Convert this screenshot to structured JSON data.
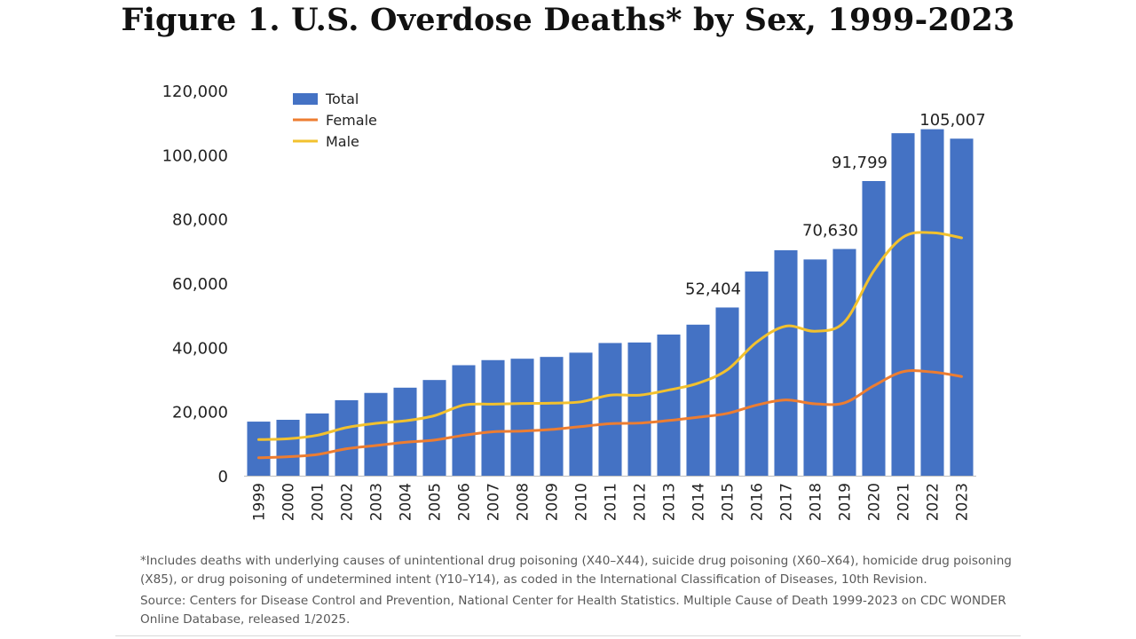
{
  "chart_data": {
    "type": "bar",
    "title": "Figure 1. U.S. Overdose Deaths* by Sex, 1999-2023",
    "xlabel": "",
    "ylabel": "",
    "ylim": [
      0,
      120000
    ],
    "yticks": [
      0,
      20000,
      40000,
      60000,
      80000,
      100000,
      120000
    ],
    "ytick_labels": [
      "0",
      "20,000",
      "40,000",
      "60,000",
      "80,000",
      "100,000",
      "120,000"
    ],
    "grid": false,
    "legend_position": "top-left",
    "categories": [
      "1999",
      "2000",
      "2001",
      "2002",
      "2003",
      "2004",
      "2005",
      "2006",
      "2007",
      "2008",
      "2009",
      "2010",
      "2011",
      "2012",
      "2013",
      "2014",
      "2015",
      "2016",
      "2017",
      "2018",
      "2019",
      "2020",
      "2021",
      "2022",
      "2023"
    ],
    "series": [
      {
        "name": "Total",
        "type": "bar",
        "color": "#4472c4",
        "values": [
          16849,
          17415,
          19394,
          23518,
          25785,
          27424,
          29813,
          34425,
          36010,
          36450,
          37004,
          38329,
          41340,
          41502,
          43982,
          47055,
          52404,
          63632,
          70237,
          67367,
          70630,
          91799,
          106699,
          107941,
          105007
        ]
      },
      {
        "name": "Female",
        "type": "line",
        "color": "#ed7d31",
        "values": [
          5591,
          5900,
          6600,
          8400,
          9400,
          10400,
          11100,
          12600,
          13700,
          13900,
          14400,
          15300,
          16200,
          16400,
          17200,
          18200,
          19400,
          22000,
          23600,
          22400,
          22700,
          28000,
          32400,
          32300,
          30900
        ]
      },
      {
        "name": "Male",
        "type": "line",
        "color": "#f2c12e",
        "values": [
          11258,
          11500,
          12600,
          15000,
          16300,
          17100,
          18700,
          22000,
          22300,
          22500,
          22600,
          23000,
          25100,
          25100,
          26700,
          28800,
          33000,
          41600,
          46600,
          45000,
          47900,
          63800,
          74300,
          75700,
          74100
        ]
      }
    ],
    "annotations": [
      {
        "category": "2015",
        "text": "52,404"
      },
      {
        "category": "2019",
        "text": "70,630"
      },
      {
        "category": "2020",
        "text": "91,799"
      },
      {
        "category": "2023",
        "text": "105,007"
      }
    ]
  },
  "footnote": "*Includes deaths with underlying causes of unintentional drug poisoning (X40–X44), suicide drug poisoning (X60–X64), homicide drug poisoning (X85), or drug poisoning of undetermined intent (Y10–Y14), as coded in the International Classification of Diseases, 10th Revision.",
  "source": "Source: Centers for Disease Control and Prevention, National Center for Health Statistics. Multiple Cause of Death 1999-2023 on CDC WONDER Online Database, released 1/2025."
}
